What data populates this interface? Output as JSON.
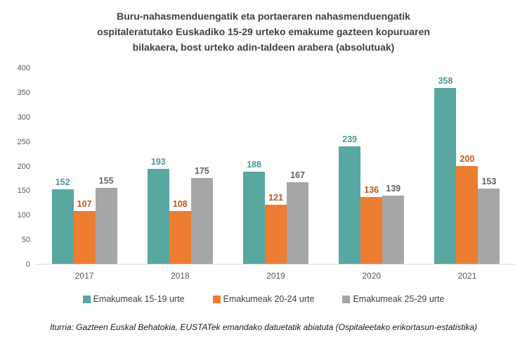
{
  "chart": {
    "title_lines": [
      "Buru-nahasmenduengatik eta portaeraren nahasmenduengatik",
      "ospitaleratutako Euskadiko 15-29 urteko emakume gazteen kopuruaren",
      "bilakaera, bost urteko adin-taldeen arabera (absolutuak)"
    ],
    "source": "Iturria: Gazteen Euskal Behatokia, EUSTATek emandako datuetatik abiatuta (Ospitaleetako erikortasun-estatistika)"
  },
  "chart_data": {
    "type": "bar",
    "title": "Buru-nahasmenduengatik eta portaeraren nahasmenduengatik ospitaleratutako Euskadiko 15-29 urteko emakume gazteen kopuruaren bilakaera, bost urteko adin-taldeen arabera (absolutuak)",
    "categories": [
      "2017",
      "2018",
      "2019",
      "2020",
      "2021"
    ],
    "series": [
      {
        "name": "Emakumeak 15-19 urte",
        "color": "#58a7a1",
        "label_color": "#4a9a94",
        "values": [
          152,
          193,
          188,
          239,
          358
        ]
      },
      {
        "name": "Emakumeak 20-24 urte",
        "color": "#ed7d31",
        "label_color": "#c0571d",
        "values": [
          107,
          108,
          121,
          136,
          200
        ]
      },
      {
        "name": "Emakumeak 25-29 urte",
        "color": "#a6a6a6",
        "label_color": "#636363",
        "values": [
          155,
          175,
          167,
          139,
          153
        ]
      }
    ],
    "xlabel": "",
    "ylabel": "",
    "ylim": [
      0,
      400
    ],
    "yticks": [
      0,
      50,
      100,
      150,
      200,
      250,
      300,
      350,
      400
    ],
    "grid": false,
    "legend_position": "bottom",
    "axis_line_color": "#d9d9d9",
    "source": "Iturria: Gazteen Euskal Behatokia, EUSTATek emandako datuetatik abiatuta (Ospitaleetako erikortasun-estatistika)"
  }
}
